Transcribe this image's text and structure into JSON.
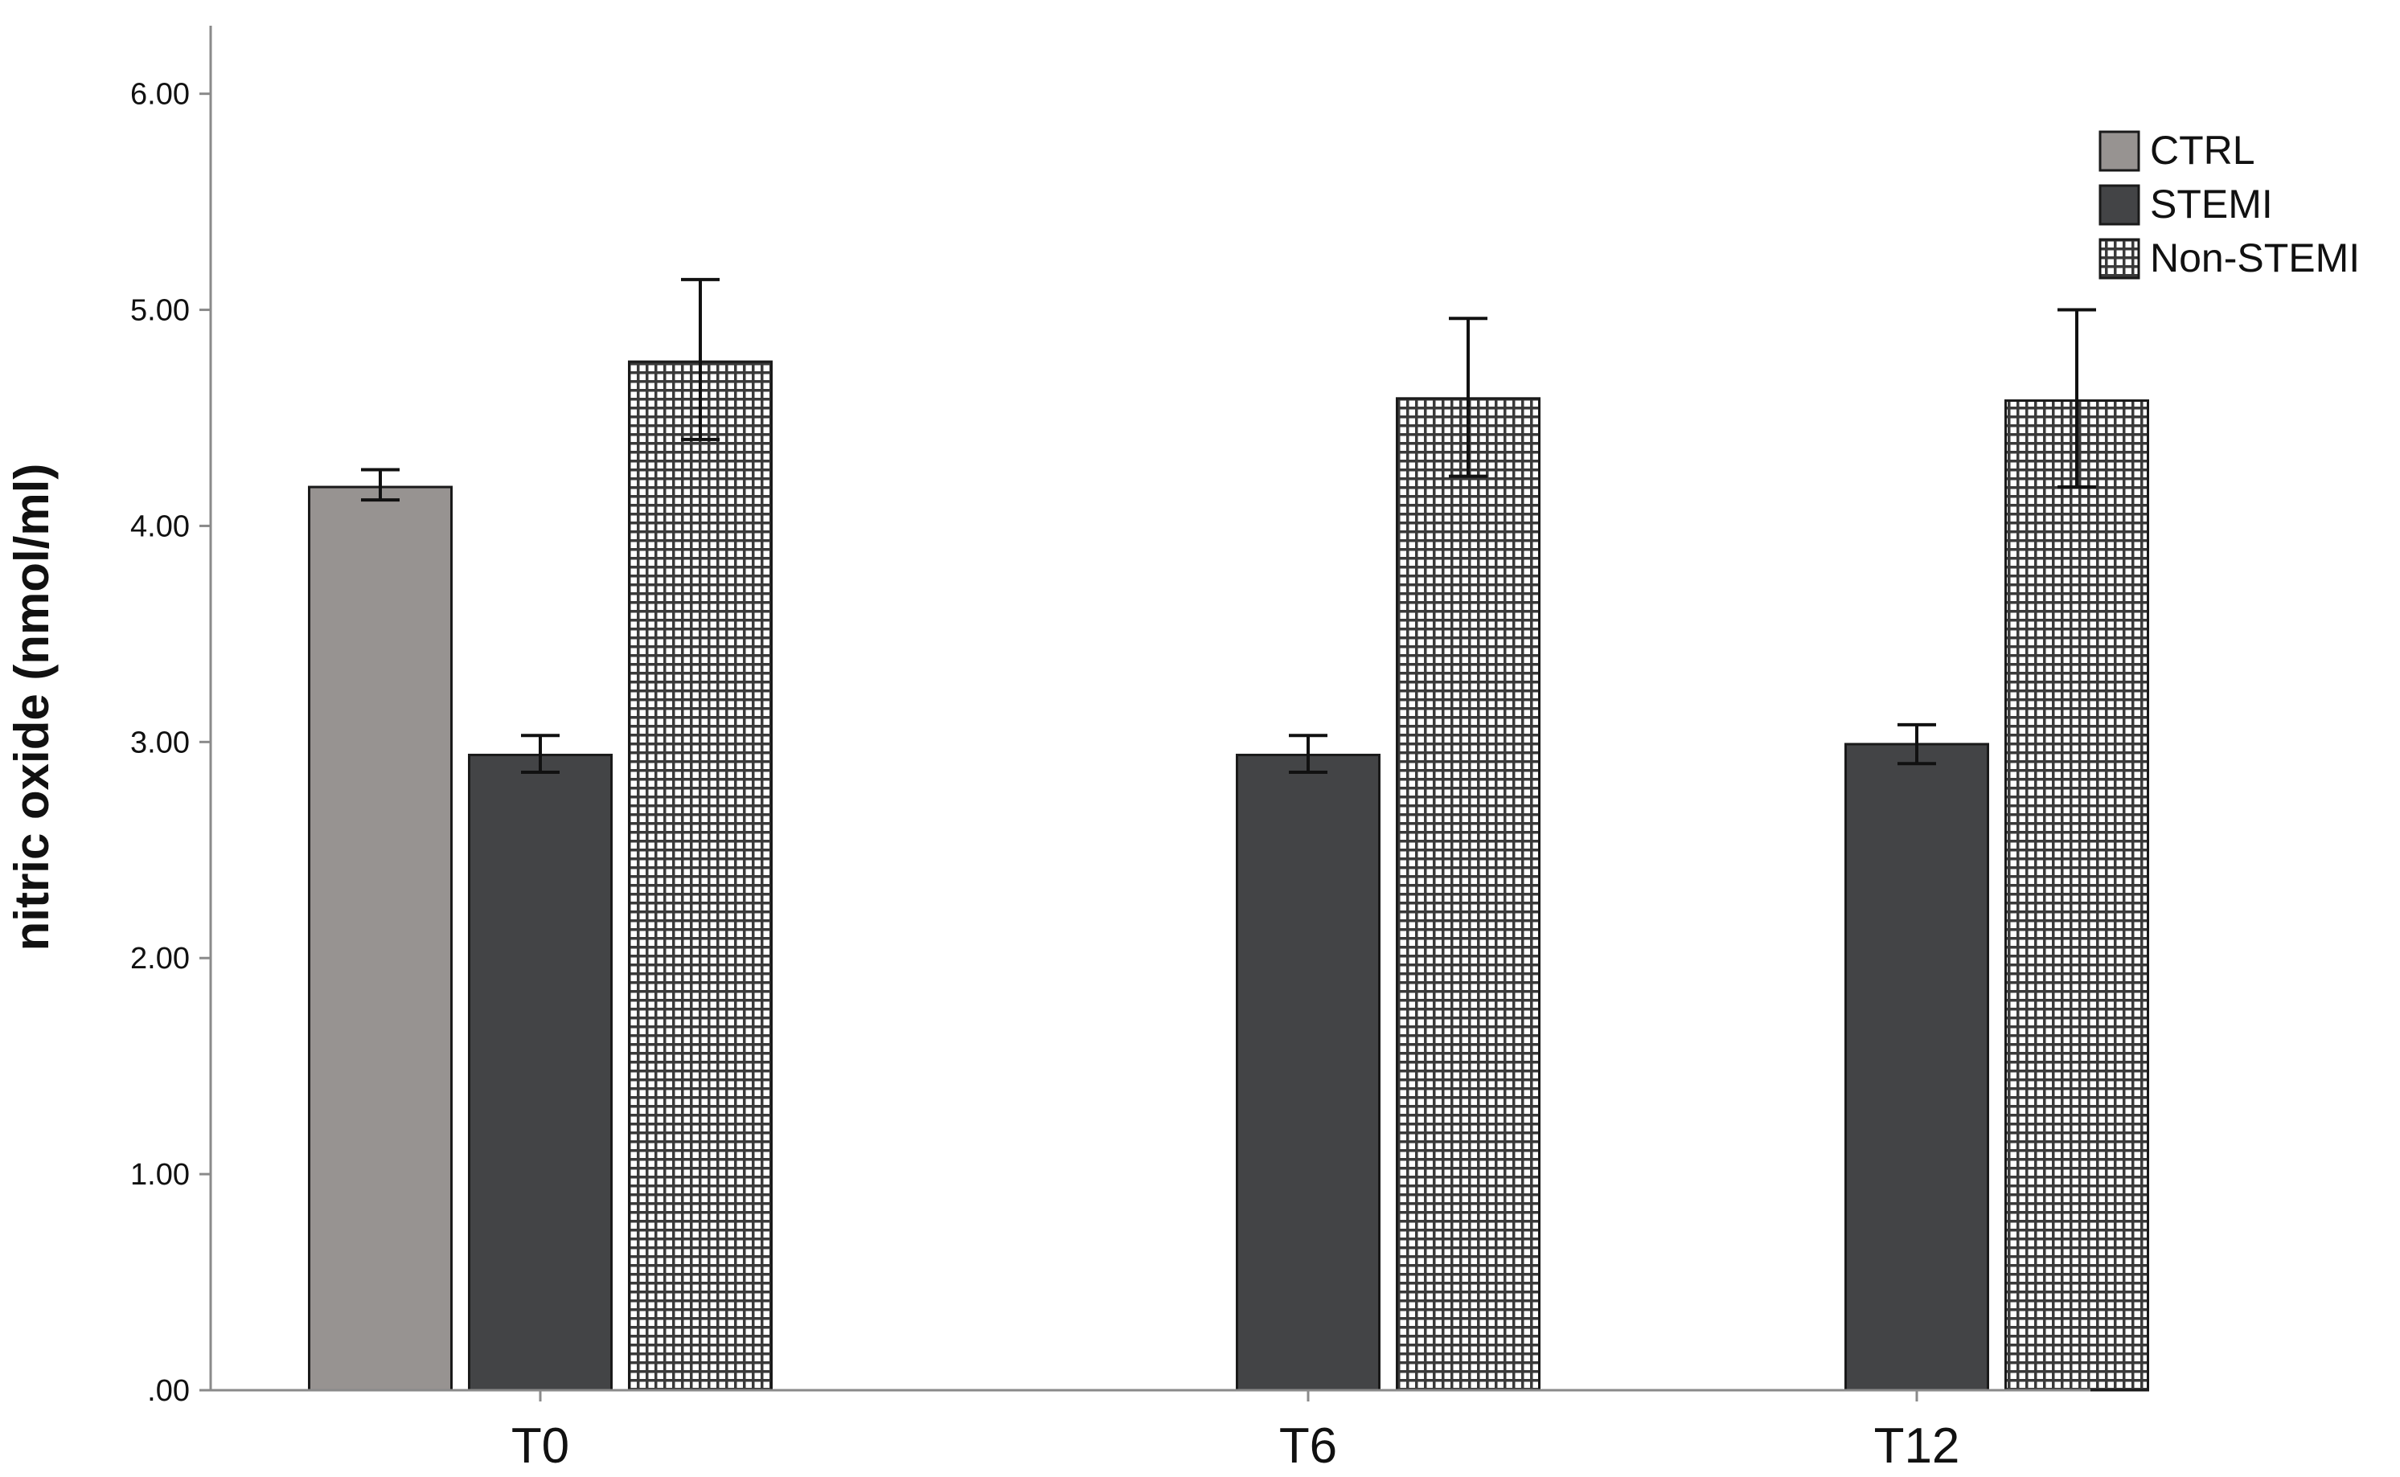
{
  "chart_data": {
    "type": "bar",
    "title": "",
    "xlabel": "",
    "ylabel": "nitric oxide (nmol/ml)",
    "ylim": [
      0,
      6.3
    ],
    "yticks": [
      0,
      1,
      2,
      3,
      4,
      5,
      6
    ],
    "ytick_labels": [
      ".00",
      "1.00",
      "2.00",
      "3.00",
      "4.00",
      "5.00",
      "6.00"
    ],
    "grid": false,
    "legend_position": "top-right",
    "categories": [
      "T0",
      "T6",
      "T12"
    ],
    "series": [
      {
        "name": "CTRL",
        "color": "#979391",
        "pattern": "solid",
        "values": [
          4.18,
          null,
          null
        ],
        "error_low": [
          4.12,
          null,
          null
        ],
        "error_high": [
          4.26,
          null,
          null
        ]
      },
      {
        "name": "STEMI",
        "color": "#434446",
        "pattern": "solid",
        "values": [
          2.94,
          2.94,
          2.99
        ],
        "error_low": [
          2.86,
          2.86,
          2.9
        ],
        "error_high": [
          3.03,
          3.03,
          3.08
        ]
      },
      {
        "name": "Non-STEMI",
        "color": "#3a3a3a",
        "pattern": "grid",
        "values": [
          4.76,
          4.59,
          4.58
        ],
        "error_low": [
          4.4,
          4.23,
          4.18
        ],
        "error_high": [
          5.14,
          4.96,
          5.0
        ]
      }
    ]
  }
}
